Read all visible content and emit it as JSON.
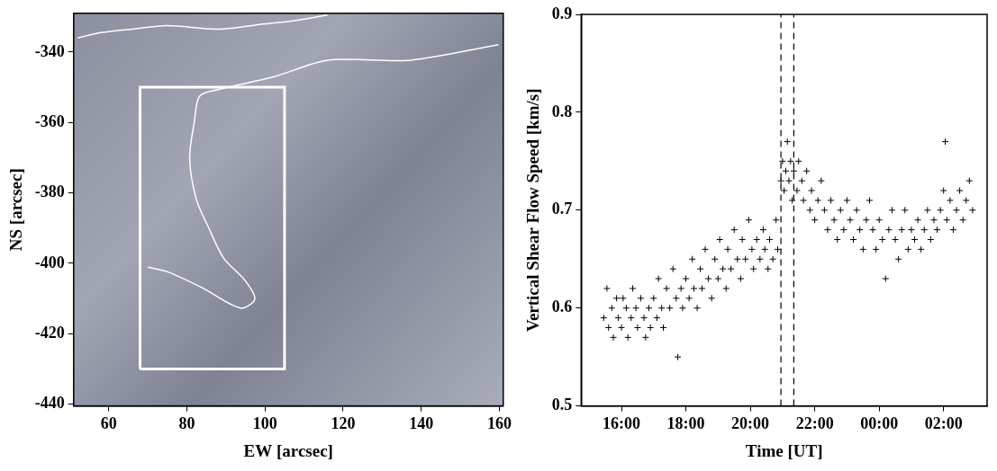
{
  "chart_data": [
    {
      "type": "map",
      "xlabel": "EW [arcsec]",
      "ylabel": "NS [arcsec]",
      "xlim": [
        51,
        161
      ],
      "ylim": [
        -440.5,
        -329
      ],
      "xticks": [
        60,
        80,
        100,
        120,
        140,
        160
      ],
      "yticks": [
        -440,
        -420,
        -400,
        -380,
        -360,
        -340
      ],
      "grid": false,
      "color": "#ffffff",
      "box": {
        "x": [
          68,
          105
        ],
        "y": [
          -430,
          -350
        ]
      },
      "contours": [
        {
          "x": [
            159.8,
            137.3,
            116.1,
            102.4,
            87.4,
            83.2,
            81.9,
            80.7,
            82.4,
            85.4,
            89.4,
            94.9,
            97.4,
            93.7,
            83.7,
            75.0,
            70.0
          ],
          "y": [
            -337.9,
            -342.3,
            -342.3,
            -347.0,
            -350.8,
            -352.6,
            -359.8,
            -370.2,
            -381.8,
            -389.5,
            -398.5,
            -404.9,
            -410.1,
            -412.7,
            -406.8,
            -402.4,
            -401.1
          ]
        },
        {
          "x": [
            52.0,
            58.0,
            66.0,
            75.0,
            88.0,
            100.0,
            108.0,
            116.0
          ],
          "y": [
            -336.0,
            -334.5,
            -333.5,
            -332.5,
            -333.5,
            -332.0,
            -331.0,
            -329.5
          ]
        }
      ]
    },
    {
      "type": "scatter",
      "xlabel": "Time [UT]",
      "ylabel": "Vertical Shear Flow Speed [km/s]",
      "xlim": [
        14.75,
        27.35
      ],
      "ylim": [
        0.5,
        0.9
      ],
      "xticks": [
        {
          "value": 16,
          "label": "16:00"
        },
        {
          "value": 18,
          "label": "18:00"
        },
        {
          "value": 20,
          "label": "20:00"
        },
        {
          "value": 22,
          "label": "22:00"
        },
        {
          "value": 24,
          "label": "00:00"
        },
        {
          "value": 26,
          "label": "02:00"
        }
      ],
      "yticks": [
        0.5,
        0.6,
        0.7,
        0.8,
        0.9
      ],
      "grid": false,
      "marker": "cross",
      "color": "#000000",
      "vlines": [
        20.95,
        21.35
      ],
      "x": [
        15.45,
        15.55,
        15.6,
        15.7,
        15.75,
        15.85,
        15.9,
        16.0,
        16.05,
        16.15,
        16.2,
        16.3,
        16.35,
        16.45,
        16.5,
        16.6,
        16.7,
        16.75,
        16.85,
        16.9,
        17.0,
        17.1,
        17.15,
        17.25,
        17.3,
        17.4,
        17.5,
        17.6,
        17.7,
        17.75,
        17.85,
        17.9,
        18.0,
        18.1,
        18.2,
        18.25,
        18.35,
        18.45,
        18.5,
        18.6,
        18.7,
        18.8,
        18.9,
        19.0,
        19.05,
        19.15,
        19.25,
        19.3,
        19.4,
        19.5,
        19.6,
        19.7,
        19.75,
        19.85,
        19.95,
        20.05,
        20.1,
        20.2,
        20.3,
        20.4,
        20.45,
        20.55,
        20.6,
        20.7,
        20.8,
        20.85,
        20.95,
        21.0,
        21.05,
        21.1,
        21.15,
        21.2,
        21.25,
        21.3,
        21.35,
        21.45,
        21.5,
        21.6,
        21.65,
        21.75,
        21.85,
        21.9,
        22.0,
        22.1,
        22.2,
        22.3,
        22.4,
        22.5,
        22.6,
        22.7,
        22.8,
        22.9,
        23.0,
        23.1,
        23.2,
        23.3,
        23.4,
        23.5,
        23.6,
        23.7,
        23.8,
        23.9,
        24.0,
        24.1,
        24.2,
        24.3,
        24.4,
        24.5,
        24.6,
        24.7,
        24.8,
        24.9,
        25.0,
        25.1,
        25.2,
        25.3,
        25.4,
        25.5,
        25.6,
        25.7,
        25.8,
        25.9,
        26.0,
        26.05,
        26.1,
        26.2,
        26.3,
        26.4,
        26.5,
        26.6,
        26.7,
        26.8,
        26.9
      ],
      "values": [
        0.59,
        0.62,
        0.58,
        0.6,
        0.57,
        0.61,
        0.59,
        0.58,
        0.61,
        0.6,
        0.57,
        0.59,
        0.62,
        0.6,
        0.58,
        0.61,
        0.59,
        0.57,
        0.6,
        0.58,
        0.61,
        0.59,
        0.63,
        0.6,
        0.58,
        0.62,
        0.6,
        0.64,
        0.61,
        0.55,
        0.62,
        0.6,
        0.63,
        0.61,
        0.65,
        0.62,
        0.6,
        0.64,
        0.62,
        0.66,
        0.63,
        0.61,
        0.65,
        0.63,
        0.67,
        0.64,
        0.62,
        0.66,
        0.64,
        0.68,
        0.65,
        0.63,
        0.67,
        0.65,
        0.69,
        0.66,
        0.64,
        0.67,
        0.65,
        0.68,
        0.66,
        0.64,
        0.67,
        0.65,
        0.69,
        0.66,
        0.73,
        0.75,
        0.72,
        0.74,
        0.77,
        0.73,
        0.75,
        0.71,
        0.74,
        0.72,
        0.75,
        0.73,
        0.71,
        0.74,
        0.7,
        0.72,
        0.69,
        0.71,
        0.73,
        0.7,
        0.68,
        0.71,
        0.69,
        0.67,
        0.7,
        0.68,
        0.71,
        0.69,
        0.67,
        0.7,
        0.68,
        0.66,
        0.69,
        0.71,
        0.68,
        0.66,
        0.69,
        0.67,
        0.63,
        0.68,
        0.7,
        0.67,
        0.65,
        0.68,
        0.7,
        0.66,
        0.68,
        0.67,
        0.69,
        0.66,
        0.68,
        0.7,
        0.67,
        0.69,
        0.68,
        0.7,
        0.72,
        0.77,
        0.69,
        0.71,
        0.68,
        0.7,
        0.72,
        0.69,
        0.71,
        0.73,
        0.7
      ]
    }
  ]
}
